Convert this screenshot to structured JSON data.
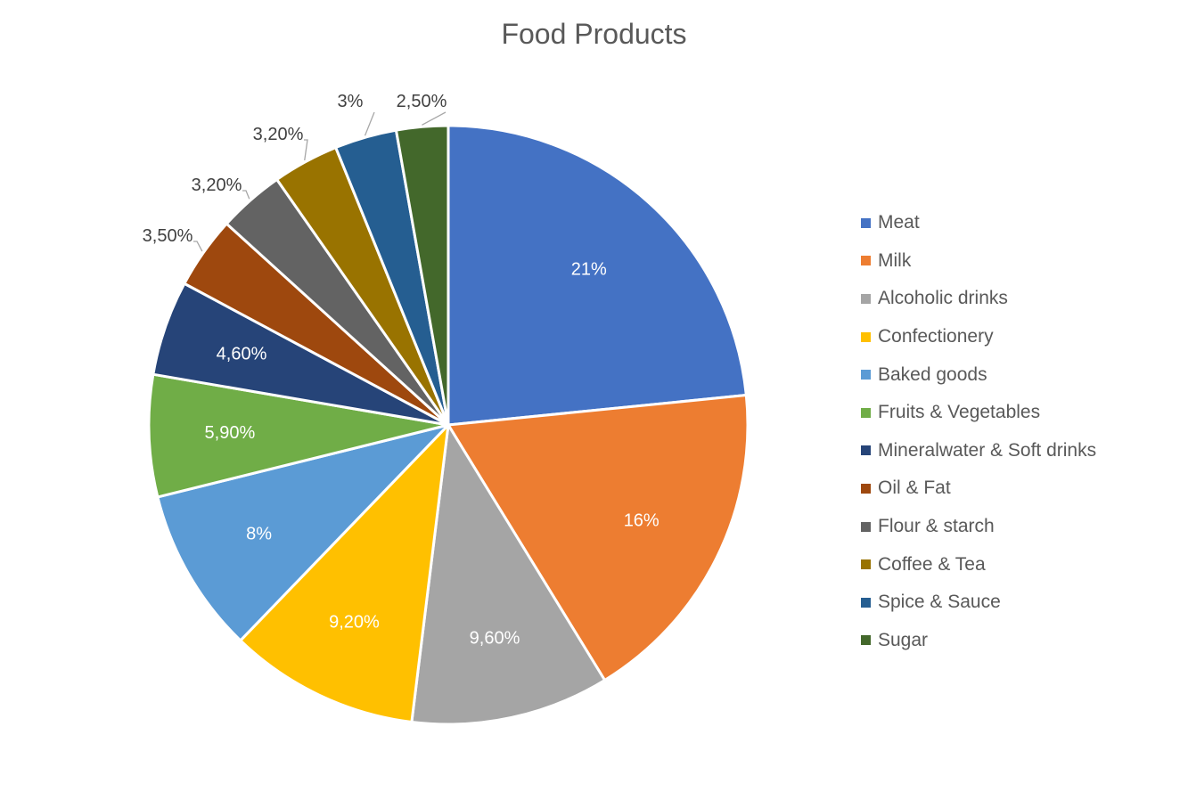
{
  "chart_data": {
    "type": "pie",
    "title": "Food Products",
    "legend_position": "right",
    "slices": [
      {
        "label": "Meat",
        "value": 21,
        "display": "21%",
        "color": "#4472C4"
      },
      {
        "label": "Milk",
        "value": 16,
        "display": "16%",
        "color": "#ED7D31"
      },
      {
        "label": "Alcoholic drinks",
        "value": 9.6,
        "display": "9,60%",
        "color": "#A5A5A5"
      },
      {
        "label": "Confectionery",
        "value": 9.2,
        "display": "9,20%",
        "color": "#FFC000"
      },
      {
        "label": "Baked goods",
        "value": 8,
        "display": "8%",
        "color": "#5B9BD5"
      },
      {
        "label": "Fruits & Vegetables",
        "value": 5.9,
        "display": "5,90%",
        "color": "#70AD47"
      },
      {
        "label": "Mineralwater & Soft drinks",
        "value": 4.6,
        "display": "4,60%",
        "color": "#264478"
      },
      {
        "label": "Oil & Fat",
        "value": 3.5,
        "display": "3,50%",
        "color": "#9E480E"
      },
      {
        "label": "Flour & starch",
        "value": 3.2,
        "display": "3,20%",
        "color": "#636363"
      },
      {
        "label": "Coffee & Tea",
        "value": 3.2,
        "display": "3,20%",
        "color": "#997300"
      },
      {
        "label": "Spice & Sauce",
        "value": 3,
        "display": "3%",
        "color": "#255E91"
      },
      {
        "label": "Sugar",
        "value": 2.5,
        "display": "2,50%",
        "color": "#43682B"
      }
    ]
  }
}
